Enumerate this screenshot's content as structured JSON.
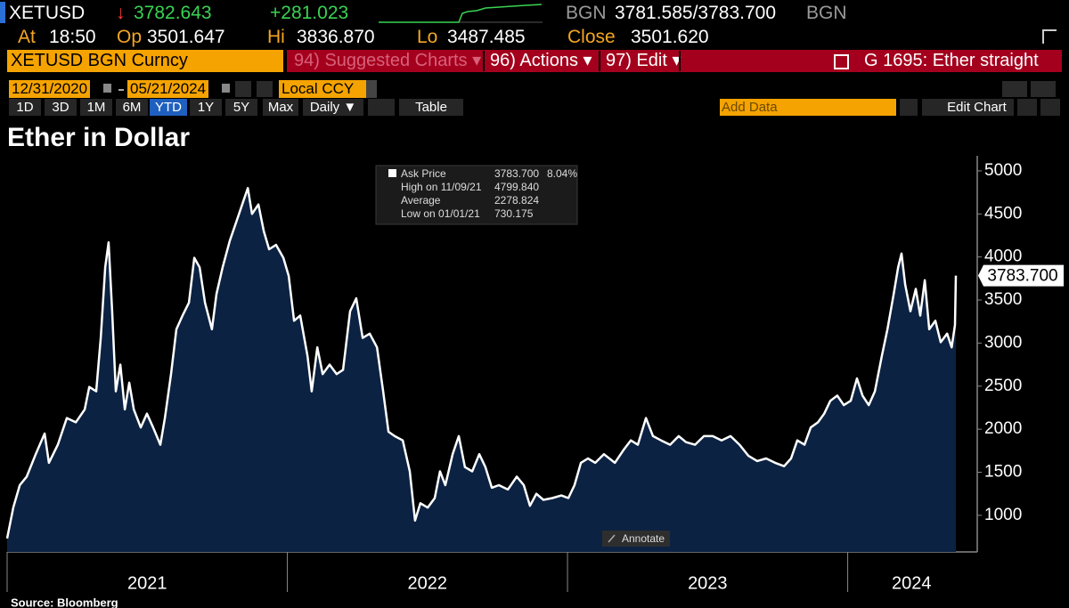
{
  "header": {
    "ticker": "XETUSD",
    "arrow": "↓",
    "last": "3782.643",
    "change": "+281.023",
    "src_bid": "BGN",
    "bid_ask": "3781.585/3783.700",
    "src_ask": "BGN",
    "at_label": "At",
    "at": "18:50",
    "op_label": "Op",
    "op": "3501.647",
    "hi_label": "Hi",
    "hi": "3836.870",
    "lo_label": "Lo",
    "lo": "3487.485",
    "close_label": "Close",
    "close": "3501.620"
  },
  "toolbar": {
    "security": "XETUSD BGN Curncy",
    "suggested": "94) Suggested Charts ▾",
    "actions": "96) Actions ▾",
    "edit": "97) Edit ▾",
    "chart_id": "G 1695: Ether straight",
    "start_date": "12/31/2020",
    "end_date": "05/21/2024",
    "currency": "Local CCY",
    "ranges": [
      "1D",
      "3D",
      "1M",
      "6M",
      "YTD",
      "1Y",
      "5Y",
      "Max"
    ],
    "selected_range": "YTD",
    "frequency": "Daily ▼",
    "table": "Table",
    "add_data": "Add Data",
    "edit_chart": "Edit Chart"
  },
  "chart_data": {
    "type": "area",
    "title": "Ether in Dollar",
    "source": "Source: Bloomberg",
    "annotate": "Annotate",
    "info_box": {
      "rows": [
        [
          "Ask Price",
          "3783.700",
          "8.04%"
        ],
        [
          "High on 11/09/21",
          "4799.840"
        ],
        [
          "Average",
          "2278.824"
        ],
        [
          "Low on 01/01/21",
          "730.175"
        ]
      ]
    },
    "xlim": [
      2021,
      2024.456
    ],
    "xticks": [
      2021,
      2022,
      2023,
      2024
    ],
    "ylim": [
      575,
      5175
    ],
    "yticks": [
      1000,
      1500,
      2000,
      2500,
      3000,
      3500,
      4000,
      4500,
      5000
    ],
    "last_value_tag": {
      "value": 3783.7,
      "label": "3783.700"
    },
    "series": [
      {
        "name": "XETUSD",
        "color": "#ffffff",
        "fill": "#0c2242",
        "x": [
          2021.0,
          2021.022,
          2021.045,
          2021.07,
          2021.102,
          2021.134,
          2021.149,
          2021.181,
          2021.213,
          2021.245,
          2021.277,
          2021.293,
          2021.318,
          2021.334,
          2021.35,
          2021.362,
          2021.375,
          2021.388,
          2021.404,
          2021.42,
          2021.436,
          2021.452,
          2021.477,
          2021.499,
          2021.521,
          2021.547,
          2021.563,
          2021.585,
          2021.604,
          2021.626,
          2021.649,
          2021.668,
          2021.687,
          2021.706,
          2021.731,
          2021.747,
          2021.769,
          2021.795,
          2021.817,
          2021.839,
          2021.859,
          2021.874,
          2021.897,
          2021.916,
          2021.935,
          2021.96,
          2021.986,
          2022.005,
          2022.024,
          2022.046,
          2022.072,
          2022.087,
          2022.107,
          2022.126,
          2022.151,
          2022.176,
          2022.199,
          2022.224,
          2022.246,
          2022.269,
          2022.294,
          2022.32,
          2022.342,
          2022.361,
          2022.383,
          2022.412,
          2022.437,
          2022.456,
          2022.475,
          2022.501,
          2022.526,
          2022.545,
          2022.564,
          2022.59,
          2022.612,
          2022.634,
          2022.66,
          2022.685,
          2022.707,
          2022.73,
          2022.755,
          2022.787,
          2022.819,
          2022.844,
          2022.866,
          2022.889,
          2022.914,
          2022.946,
          2022.978,
          2023.003,
          2023.025,
          2023.048,
          2023.073,
          2023.099,
          2023.13,
          2023.169,
          2023.2,
          2023.226,
          2023.251,
          2023.28,
          2023.305,
          2023.334,
          2023.366,
          2023.397,
          2023.423,
          2023.455,
          2023.487,
          2023.518,
          2023.55,
          2023.582,
          2023.614,
          2023.646,
          2023.677,
          2023.709,
          2023.741,
          2023.773,
          2023.798,
          2023.82,
          2023.846,
          2023.868,
          2023.894,
          2023.916,
          2023.938,
          2023.963,
          2023.986,
          2024.011,
          2024.033,
          2024.053,
          2024.075,
          2024.097,
          2024.122,
          2024.142,
          2024.164,
          2024.18,
          2024.192,
          2024.205,
          2024.224,
          2024.243,
          2024.259,
          2024.275,
          2024.291,
          2024.313,
          2024.332,
          2024.355,
          2024.371,
          2024.383,
          2024.386
        ],
        "values": [
          731,
          1090,
          1350,
          1450,
          1710,
          1950,
          1610,
          1820,
          2130,
          2080,
          2230,
          2490,
          2440,
          3060,
          3880,
          4170,
          3370,
          2440,
          2750,
          2230,
          2540,
          2230,
          2020,
          2180,
          2020,
          1820,
          2130,
          2640,
          3160,
          3320,
          3470,
          3990,
          3880,
          3470,
          3160,
          3570,
          3880,
          4190,
          4400,
          4610,
          4800,
          4500,
          4610,
          4300,
          4090,
          4140,
          3990,
          3780,
          3260,
          3320,
          2850,
          2440,
          2950,
          2640,
          2750,
          2640,
          2690,
          3370,
          3520,
          3060,
          3110,
          2950,
          2440,
          1970,
          1920,
          1870,
          1510,
          940,
          1140,
          1090,
          1200,
          1510,
          1350,
          1710,
          1920,
          1560,
          1510,
          1710,
          1560,
          1320,
          1350,
          1300,
          1450,
          1350,
          1110,
          1250,
          1180,
          1200,
          1230,
          1200,
          1350,
          1610,
          1660,
          1610,
          1710,
          1610,
          1760,
          1870,
          1820,
          2130,
          1920,
          1870,
          1820,
          1920,
          1850,
          1820,
          1920,
          1920,
          1870,
          1920,
          1820,
          1690,
          1630,
          1660,
          1610,
          1570,
          1660,
          1870,
          1820,
          2020,
          2080,
          2180,
          2330,
          2390,
          2280,
          2330,
          2590,
          2390,
          2280,
          2440,
          2850,
          3160,
          3570,
          3880,
          4040,
          3680,
          3370,
          3630,
          3320,
          3730,
          3160,
          3260,
          3010,
          3110,
          2950,
          3210,
          3784
        ]
      }
    ]
  }
}
